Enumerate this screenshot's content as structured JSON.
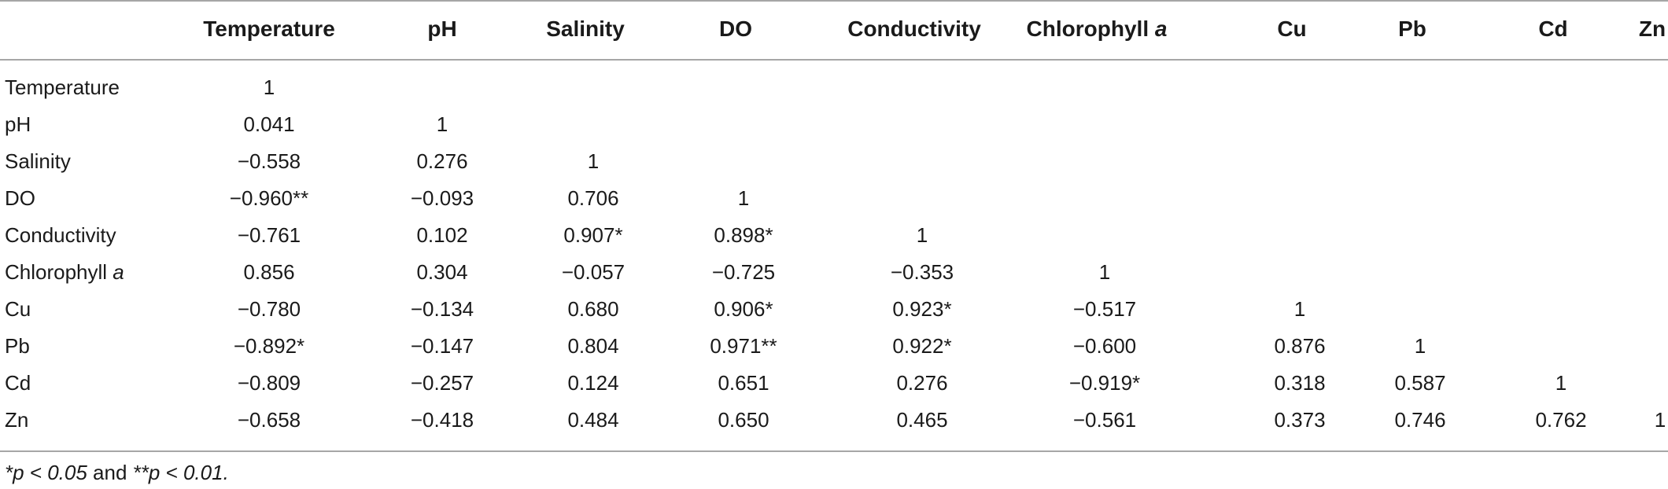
{
  "table": {
    "columns": [
      {
        "name": "Temperature"
      },
      {
        "name": "pH"
      },
      {
        "name": "Salinity"
      },
      {
        "name": "DO"
      },
      {
        "name": "Conductivity"
      },
      {
        "name": "Chlorophyll ",
        "italic": "a"
      },
      {
        "name": "Cu"
      },
      {
        "name": "Pb"
      },
      {
        "name": "Cd"
      },
      {
        "name": "Zn"
      }
    ],
    "rows": [
      {
        "label": "Temperature",
        "cells": [
          "1"
        ]
      },
      {
        "label": "pH",
        "cells": [
          "0.041",
          "1"
        ]
      },
      {
        "label": "Salinity",
        "cells": [
          "−0.558",
          "0.276",
          "1"
        ]
      },
      {
        "label": "DO",
        "cells": [
          "−0.960**",
          "−0.093",
          "0.706",
          "1"
        ]
      },
      {
        "label": "Conductivity",
        "cells": [
          "−0.761",
          "0.102",
          "0.907*",
          "0.898*",
          "1"
        ]
      },
      {
        "label": "Chlorophyll ",
        "label_italic": "a",
        "cells": [
          "0.856",
          "0.304",
          "−0.057",
          "−0.725",
          "−0.353",
          "1"
        ]
      },
      {
        "label": "Cu",
        "cells": [
          "−0.780",
          "−0.134",
          "0.680",
          "0.906*",
          "0.923*",
          "−0.517",
          "1"
        ]
      },
      {
        "label": "Pb",
        "cells": [
          "−0.892*",
          "−0.147",
          "0.804",
          "0.971**",
          "0.922*",
          "−0.600",
          "0.876",
          "1"
        ]
      },
      {
        "label": "Cd",
        "cells": [
          "−0.809",
          "−0.257",
          "0.124",
          "0.651",
          "0.276",
          "−0.919*",
          "0.318",
          "0.587",
          "1"
        ]
      },
      {
        "label": "Zn",
        "cells": [
          "−0.658",
          "−0.418",
          "0.484",
          "0.650",
          "0.465",
          "−0.561",
          "0.373",
          "0.746",
          "0.762",
          "1"
        ]
      }
    ]
  },
  "footnote": {
    "part1": "*p < 0.05",
    "part2": " and ",
    "part3": "**p < 0.01."
  }
}
